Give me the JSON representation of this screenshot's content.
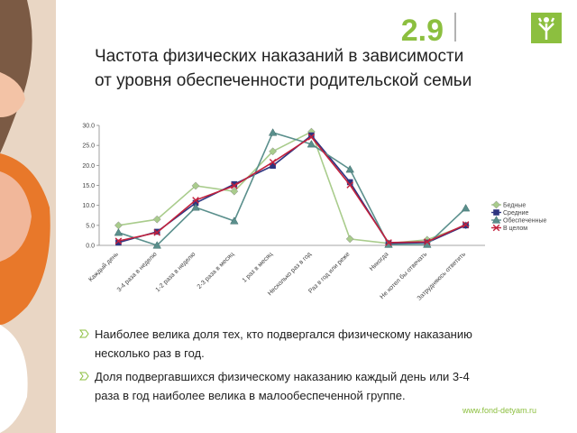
{
  "slide_number": "2.9",
  "title": [
    "Частота физических наказаний  в зависимости",
    "от уровня обеспеченности родительской семьи"
  ],
  "chart_data": {
    "type": "line",
    "categories": [
      "Каждый день",
      "3-4 раза в неделю",
      "1-2 раза в неделю",
      "2-3 раза в месяц",
      "1 раз в месяц",
      "Несколько раз в год",
      "Раз в год или реже",
      "Никогда",
      "Не хотел бы отвечать",
      "Затрудняюсь ответить"
    ],
    "series": [
      {
        "name": "Бедные",
        "color": "#a9cc8c",
        "marker": "diamond",
        "values": [
          5.0,
          6.5,
          14.9,
          13.5,
          23.5,
          28.4,
          1.6,
          0.5,
          1.4,
          5.0
        ]
      },
      {
        "name": "Средние",
        "color": "#2e3580",
        "marker": "square",
        "values": [
          0.7,
          3.4,
          10.6,
          15.3,
          19.9,
          27.5,
          15.8,
          0.5,
          0.7,
          5.0
        ]
      },
      {
        "name": "Обеспеченные",
        "color": "#5a8f8c",
        "marker": "triangle",
        "values": [
          3.2,
          0.0,
          9.5,
          6.1,
          28.2,
          25.3,
          19.0,
          0.2,
          0.2,
          9.3
        ]
      },
      {
        "name": "В целом",
        "color": "#c2203c",
        "marker": "cross",
        "values": [
          1.1,
          3.2,
          11.3,
          14.9,
          20.8,
          27.1,
          15.1,
          0.7,
          0.9,
          5.2
        ]
      }
    ],
    "ylim": [
      0,
      30
    ],
    "yticks": [
      {
        "value": 0,
        "label": "0.0"
      },
      {
        "value": 5,
        "label": "5.0"
      },
      {
        "value": 10,
        "label": "10.0"
      },
      {
        "value": 15,
        "label": "15.0"
      },
      {
        "value": 20,
        "label": "20.0"
      },
      {
        "value": 25,
        "label": "25.0"
      },
      {
        "value": 30,
        "label": "30.0"
      }
    ],
    "grid": false,
    "legend": "right"
  },
  "bullets": [
    [
      "Наиболее велика доля тех, кто подвергался физическому наказанию",
      "несколько раз в год."
    ],
    [
      "Доля подвергавшихся физическому наказанию каждый день или 3-4",
      "раза в год наиболее велика в малообеспеченной группе."
    ]
  ],
  "footer": "www.fond-detyam.ru"
}
